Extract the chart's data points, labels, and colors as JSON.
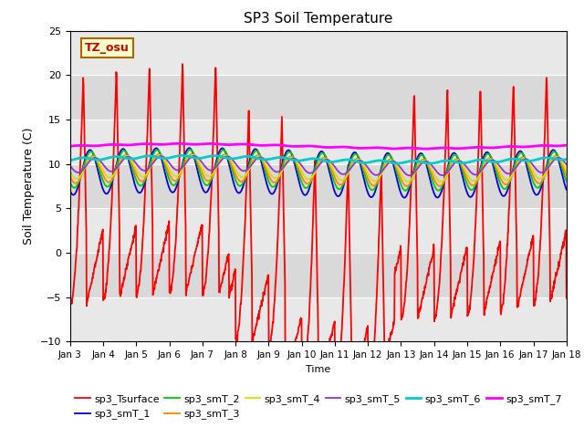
{
  "title": "SP3 Soil Temperature",
  "ylabel": "Soil Temperature (C)",
  "xlabel_partial": "Time",
  "ylim": [
    -10,
    25
  ],
  "yticks": [
    -10,
    -5,
    0,
    5,
    10,
    15,
    20,
    25
  ],
  "xtick_labels": [
    "Jan 3",
    "Jan 4",
    "Jan 5",
    "Jan 6",
    "Jan 7",
    "Jan 8",
    "Jan 9",
    "Jan 10",
    "Jan 11",
    "Jan 12",
    "Jan 13",
    "Jan 14",
    "Jan 15",
    "Jan 16",
    "Jan 17",
    "Jan 18"
  ],
  "annotation_text": "TZ_osu",
  "annotation_color": "#cc0000",
  "annotation_bg": "#ffffcc",
  "annotation_border": "#aa6600",
  "series_order": [
    "sp3_Tsurface",
    "sp3_smT_1",
    "sp3_smT_2",
    "sp3_smT_3",
    "sp3_smT_4",
    "sp3_smT_5",
    "sp3_smT_6",
    "sp3_smT_7"
  ],
  "series": {
    "sp3_Tsurface": {
      "color": "#ff0000",
      "lw": 1.3
    },
    "sp3_smT_1": {
      "color": "#0000dd",
      "lw": 1.3
    },
    "sp3_smT_2": {
      "color": "#00cc00",
      "lw": 1.3
    },
    "sp3_smT_3": {
      "color": "#ff8800",
      "lw": 1.3
    },
    "sp3_smT_4": {
      "color": "#dddd00",
      "lw": 1.3
    },
    "sp3_smT_5": {
      "color": "#9933cc",
      "lw": 1.3
    },
    "sp3_smT_6": {
      "color": "#00cccc",
      "lw": 2.0
    },
    "sp3_smT_7": {
      "color": "#ff00ff",
      "lw": 2.0
    }
  },
  "bg_color": "#d8d8d8",
  "plot_bg": "#e8e8e8",
  "legend_ncol_row1": 6,
  "legend_ncol_row2": 2
}
